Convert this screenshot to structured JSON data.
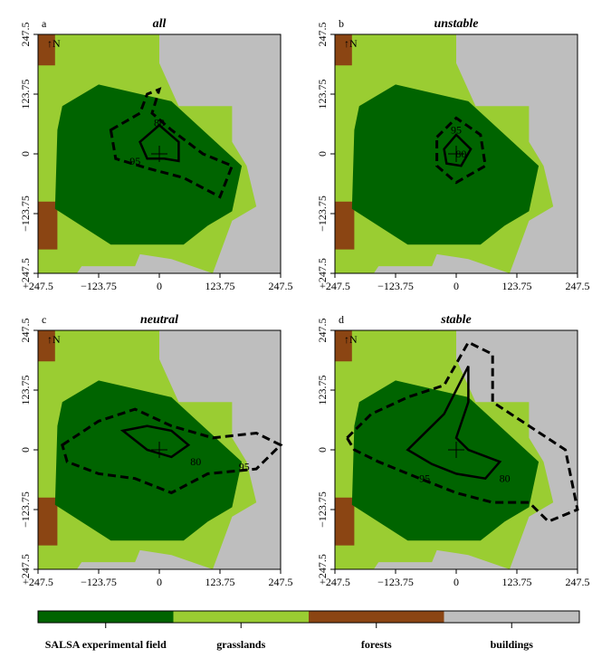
{
  "axes": {
    "xlim": [
      -247.5,
      247.5
    ],
    "ylim": [
      -247.5,
      247.5
    ],
    "xticks": [
      {
        "value": -247.5,
        "label": "−247.5"
      },
      {
        "value": -123.75,
        "label": "−123.75"
      },
      0,
      123.75,
      247.5
    ],
    "yticks": [
      {
        "value": -247.5,
        "label": "−247.5"
      },
      {
        "value": -123.75,
        "label": "−123.75"
      },
      0,
      123.75,
      247.5
    ]
  },
  "north_label": "↑N",
  "panels": [
    {
      "letter": "a",
      "title": "all",
      "contour_labels": [
        "80",
        "95"
      ]
    },
    {
      "letter": "b",
      "title": "unstable",
      "contour_labels": [
        "95",
        "80"
      ]
    },
    {
      "letter": "c",
      "title": "neutral",
      "contour_labels": [
        "80",
        "95"
      ]
    },
    {
      "letter": "d",
      "title": "stable",
      "contour_labels": [
        "95",
        "80"
      ]
    }
  ],
  "legend": [
    {
      "name": "SALSA experimental field",
      "color": "#006400"
    },
    {
      "name": "grasslands",
      "color": "#9acd32"
    },
    {
      "name": "forests",
      "color": "#8b4513"
    },
    {
      "name": "buildings",
      "color": "#bebebe"
    }
  ]
}
